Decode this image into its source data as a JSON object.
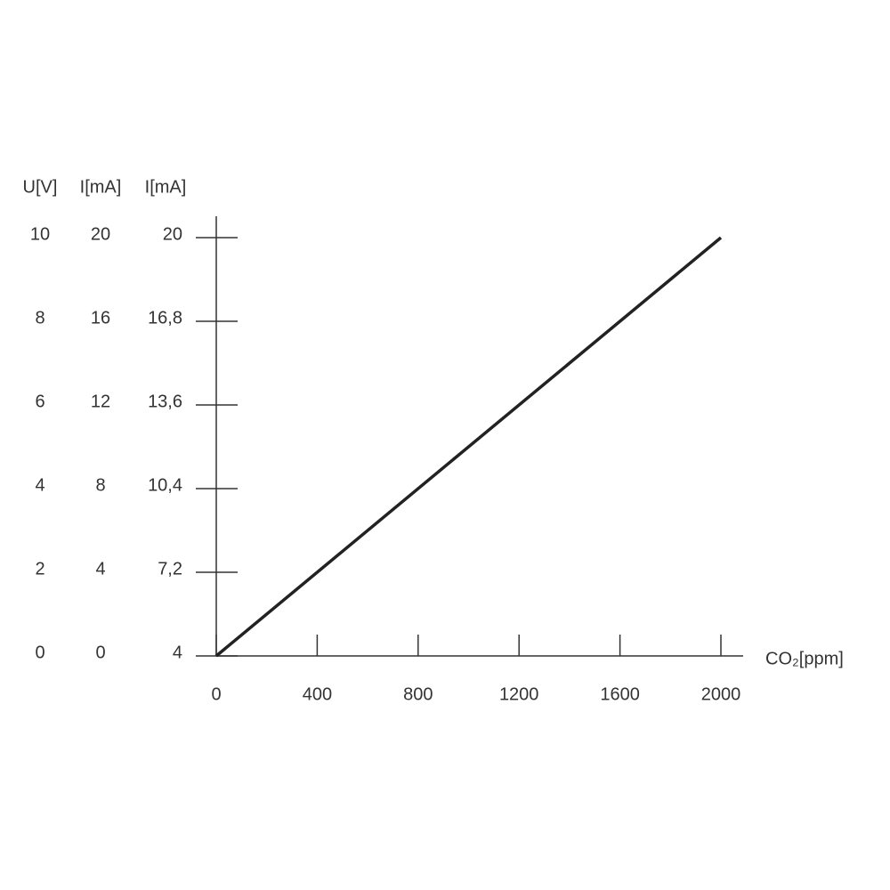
{
  "chart_data": {
    "type": "line",
    "x": [
      0,
      2000
    ],
    "series": [
      {
        "color": "#222222",
        "values": [
          0,
          10
        ]
      }
    ],
    "xlabel": "CO₂[ppm]",
    "xlim": [
      0,
      2000
    ],
    "xticks": [
      0,
      400,
      800,
      1200,
      1600,
      2000
    ],
    "ylabel": "U[V]",
    "ylim": [
      0,
      10
    ],
    "yticks": [
      0,
      2,
      4,
      6,
      8,
      10
    ],
    "y2label": "I[mA]",
    "y2lim": [
      0,
      20
    ],
    "y2ticks": [
      0,
      4,
      8,
      12,
      16,
      20
    ],
    "y3label": "I[mA]",
    "y3lim": [
      4,
      20
    ],
    "y3ticks": [
      4,
      {
        "value": 7.2,
        "label": "7,2"
      },
      {
        "value": 10.4,
        "label": "10,4"
      },
      {
        "value": 13.6,
        "label": "13,6"
      },
      {
        "value": 16.8,
        "label": "16,8"
      },
      20
    ]
  }
}
